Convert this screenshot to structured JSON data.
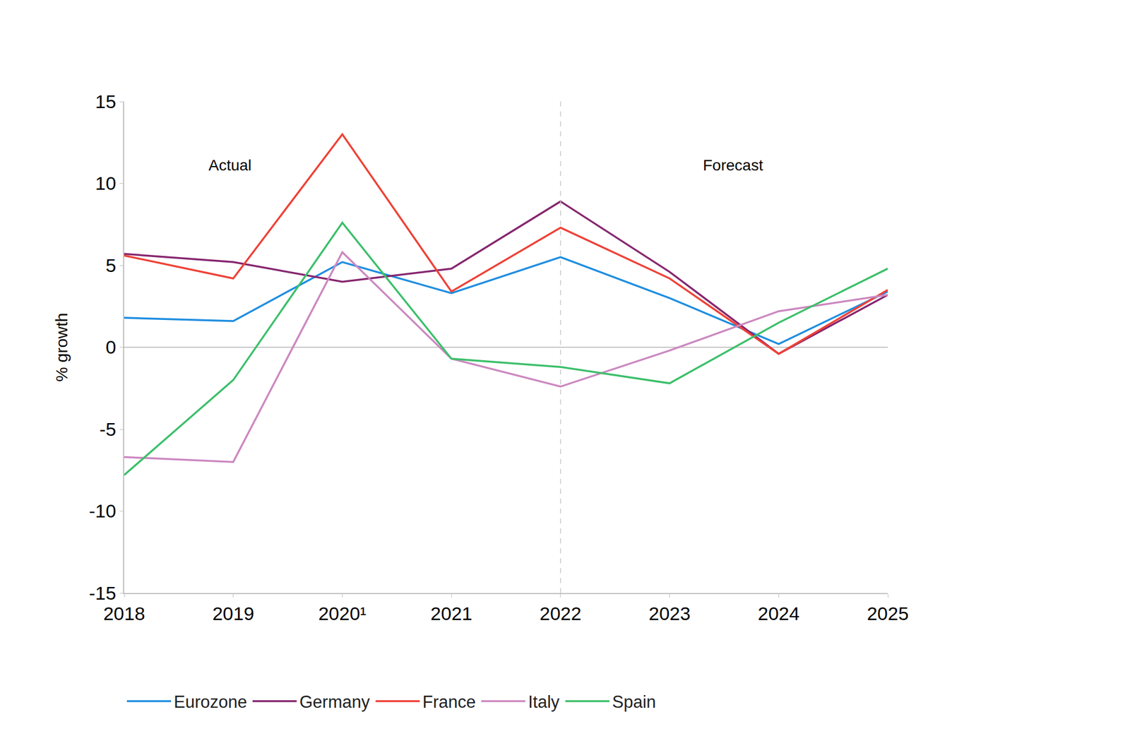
{
  "chart_data": {
    "type": "line",
    "y_label": "% growth",
    "categories": [
      "2018",
      "2019",
      "2020¹",
      "2021",
      "2022",
      "2023",
      "2024",
      "2025"
    ],
    "series": [
      {
        "name": "Eurozone",
        "color": "#1f8ee0",
        "values": [
          1.8,
          1.6,
          5.2,
          3.3,
          5.5,
          3.0,
          0.2,
          3.4
        ]
      },
      {
        "name": "Germany",
        "color": "#86266f",
        "values": [
          5.7,
          5.2,
          4.0,
          4.8,
          8.9,
          4.6,
          -0.4,
          3.2
        ]
      },
      {
        "name": "France",
        "color": "#ef4136",
        "values": [
          5.6,
          4.2,
          13.0,
          3.4,
          7.3,
          4.2,
          -0.4,
          3.5
        ]
      },
      {
        "name": "Italy",
        "color": "#cc88c0",
        "values": [
          -6.7,
          -7.0,
          5.8,
          -0.7,
          -2.4,
          -0.2,
          2.2,
          3.2
        ]
      },
      {
        "name": "Spain",
        "color": "#3cbf6a",
        "values": [
          -7.8,
          -2.0,
          7.6,
          -0.7,
          -1.2,
          -2.2,
          1.5,
          4.8
        ]
      }
    ],
    "ylim": [
      -15,
      15
    ],
    "yticks": [
      -15,
      -10,
      -5,
      0,
      5,
      10,
      15
    ],
    "annotations": [
      {
        "text": "Actual",
        "x": "2018"
      },
      {
        "text": "Forecast",
        "x": "2022"
      }
    ],
    "grid": false,
    "legend": "bottom"
  }
}
